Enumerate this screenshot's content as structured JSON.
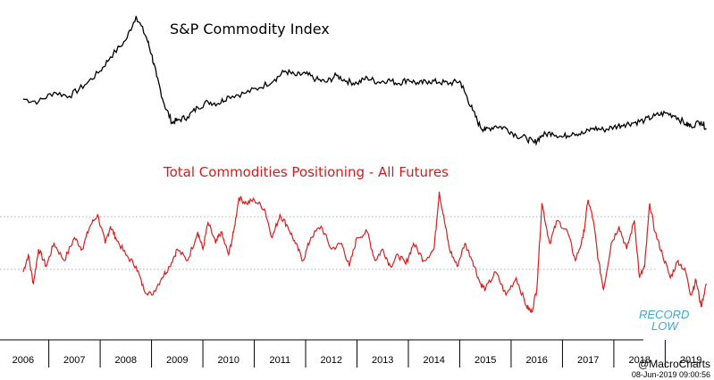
{
  "chart_data": [
    {
      "type": "line",
      "title": "S&P Commodity Index",
      "series": [
        {
          "name": "S&P Commodity Index",
          "color": "#000000",
          "x": [
            2006.0,
            2006.3,
            2006.6,
            2006.9,
            2007.2,
            2007.5,
            2007.7,
            2008.0,
            2008.2,
            2008.4,
            2008.5,
            2008.6,
            2008.75,
            2008.9,
            2009.0,
            2009.2,
            2009.4,
            2009.6,
            2009.8,
            2010.0,
            2010.3,
            2010.6,
            2010.9,
            2011.1,
            2011.3,
            2011.5,
            2011.7,
            2011.9,
            2012.1,
            2012.3,
            2012.5,
            2012.7,
            2012.9,
            2013.1,
            2013.3,
            2013.5,
            2013.7,
            2013.9,
            2014.1,
            2014.3,
            2014.5,
            2014.6,
            2014.75,
            2014.9,
            2015.0,
            2015.2,
            2015.4,
            2015.6,
            2015.8,
            2015.95,
            2016.1,
            2016.3,
            2016.5,
            2016.7,
            2016.9,
            2017.1,
            2017.3,
            2017.5,
            2017.7,
            2017.9,
            2018.1,
            2018.3,
            2018.5,
            2018.7,
            2018.9,
            2019.0,
            2019.2,
            2019.3
          ],
          "values": [
            100,
            95,
            112,
            105,
            125,
            150,
            175,
            205,
            248,
            210,
            180,
            140,
            90,
            58,
            62,
            68,
            85,
            95,
            92,
            105,
            110,
            120,
            135,
            150,
            142,
            145,
            135,
            130,
            142,
            132,
            128,
            138,
            130,
            134,
            128,
            135,
            127,
            132,
            130,
            128,
            132,
            112,
            80,
            50,
            45,
            52,
            48,
            35,
            30,
            22,
            35,
            40,
            32,
            40,
            38,
            48,
            45,
            50,
            55,
            58,
            62,
            70,
            75,
            70,
            55,
            52,
            60,
            48
          ]
        }
      ]
    },
    {
      "type": "line",
      "title": "Total Commodities Positioning - All Futures",
      "series": [
        {
          "name": "Total Commodities Positioning - All Futures",
          "color": "#d62020",
          "x": [
            2006.0,
            2006.1,
            2006.2,
            2006.3,
            2006.45,
            2006.6,
            2006.8,
            2007.0,
            2007.15,
            2007.3,
            2007.45,
            2007.6,
            2007.7,
            2007.8,
            2008.0,
            2008.2,
            2008.35,
            2008.5,
            2008.7,
            2008.85,
            2009.0,
            2009.2,
            2009.4,
            2009.5,
            2009.6,
            2009.75,
            2009.85,
            2010.0,
            2010.1,
            2010.2,
            2010.35,
            2010.5,
            2010.7,
            2010.85,
            2011.0,
            2011.15,
            2011.3,
            2011.45,
            2011.6,
            2011.8,
            2012.0,
            2012.2,
            2012.35,
            2012.5,
            2012.7,
            2012.85,
            2013.0,
            2013.15,
            2013.3,
            2013.45,
            2013.6,
            2013.8,
            2014.0,
            2014.1,
            2014.2,
            2014.3,
            2014.45,
            2014.6,
            2014.75,
            2014.9,
            2015.0,
            2015.2,
            2015.4,
            2015.6,
            2015.8,
            2015.9,
            2016.0,
            2016.1,
            2016.25,
            2016.4,
            2016.6,
            2016.75,
            2016.9,
            2017.0,
            2017.1,
            2017.2,
            2017.3,
            2017.45,
            2017.6,
            2017.75,
            2017.9,
            2018.0,
            2018.1,
            2018.2,
            2018.3,
            2018.45,
            2018.6,
            2018.75,
            2018.9,
            2019.0,
            2019.1,
            2019.2,
            2019.3
          ],
          "values": [
            35,
            50,
            25,
            55,
            40,
            60,
            45,
            65,
            55,
            75,
            85,
            60,
            75,
            65,
            50,
            40,
            20,
            15,
            30,
            40,
            55,
            45,
            70,
            55,
            78,
            60,
            70,
            50,
            70,
            100,
            95,
            98,
            90,
            65,
            85,
            75,
            60,
            45,
            65,
            75,
            55,
            60,
            40,
            65,
            70,
            45,
            55,
            40,
            50,
            42,
            60,
            45,
            55,
            105,
            80,
            55,
            40,
            60,
            45,
            25,
            20,
            35,
            15,
            30,
            5,
            0,
            20,
            95,
            60,
            80,
            70,
            45,
            65,
            98,
            80,
            45,
            20,
            60,
            75,
            55,
            80,
            30,
            40,
            95,
            70,
            50,
            30,
            45,
            35,
            15,
            28,
            5,
            25
          ]
        }
      ],
      "annotation": "RECORD LOW"
    }
  ],
  "x_axis": {
    "labels": [
      "2006",
      "2007",
      "2008",
      "2009",
      "2010",
      "2011",
      "2012",
      "2013",
      "2014",
      "2015",
      "2016",
      "2017",
      "2018",
      "2019"
    ]
  },
  "credit": "@MacroCharts",
  "timestamp": "08-Jun-2019 09:00:56"
}
